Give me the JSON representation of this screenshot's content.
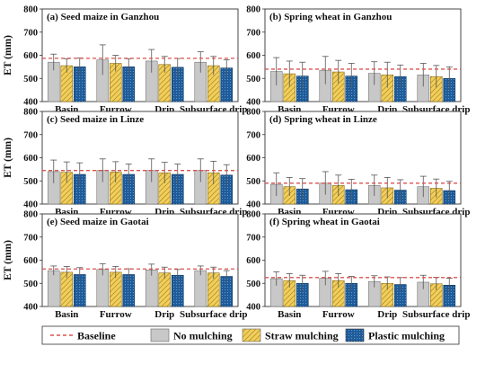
{
  "colors": {
    "no_mulching": "#c8c8c8",
    "straw_mulching": "#f2cf5a",
    "straw_hatch": "#9a7a20",
    "plastic_mulching": "#1f5c99",
    "plastic_hatch": "#6fa8dc",
    "baseline": "#d9534f",
    "error_bar": "#555555",
    "axis": "#333333"
  },
  "legend": {
    "baseline": "Baseline",
    "no_mulching": "No mulching",
    "straw_mulching": "Straw mulching",
    "plastic_mulching": "Plastic mulching"
  },
  "chart_data": [
    {
      "type": "bar",
      "title": "(a) Seed maize in Ganzhou",
      "ylabel": "ET (mm)",
      "ylim": [
        400,
        800
      ],
      "yticks": [
        400,
        500,
        600,
        700,
        800
      ],
      "categories": [
        "Basin",
        "Furrow",
        "Drip",
        "Subsurface drip"
      ],
      "baseline": 587,
      "series": [
        {
          "name": "No mulching",
          "values": [
            570,
            580,
            575,
            570
          ],
          "errors": [
            35,
            65,
            50,
            45
          ]
        },
        {
          "name": "Straw mulching",
          "values": [
            555,
            565,
            560,
            555
          ],
          "errors": [
            30,
            35,
            35,
            40
          ]
        },
        {
          "name": "Plastic mulching",
          "values": [
            550,
            550,
            548,
            545
          ],
          "errors": [
            38,
            35,
            38,
            35
          ]
        }
      ]
    },
    {
      "type": "bar",
      "title": "(b) Spring wheat in Ganzhou",
      "ylabel": "",
      "ylim": [
        400,
        800
      ],
      "yticks": [
        400,
        500,
        600,
        700,
        800
      ],
      "categories": [
        "Basin",
        "Furrow",
        "Drip",
        "Subsurface drip"
      ],
      "baseline": 540,
      "series": [
        {
          "name": "No mulching",
          "values": [
            530,
            535,
            522,
            515
          ],
          "errors": [
            60,
            60,
            50,
            50
          ]
        },
        {
          "name": "Straw mulching",
          "values": [
            520,
            528,
            515,
            508
          ],
          "errors": [
            55,
            50,
            55,
            48
          ]
        },
        {
          "name": "Plastic mulching",
          "values": [
            510,
            510,
            508,
            500
          ],
          "errors": [
            60,
            55,
            50,
            50
          ]
        }
      ]
    },
    {
      "type": "bar",
      "title": "(c) Seed maize in Linze",
      "ylabel": "ET (mm)",
      "ylim": [
        400,
        800
      ],
      "yticks": [
        400,
        500,
        600,
        700,
        800
      ],
      "categories": [
        "Basin",
        "Furrow",
        "Drip",
        "Subsurface drip"
      ],
      "baseline": 545,
      "series": [
        {
          "name": "No mulching",
          "values": [
            540,
            545,
            545,
            545
          ],
          "errors": [
            50,
            50,
            50,
            50
          ]
        },
        {
          "name": "Straw mulching",
          "values": [
            537,
            538,
            535,
            535
          ],
          "errors": [
            45,
            45,
            45,
            50
          ]
        },
        {
          "name": "Plastic mulching",
          "values": [
            528,
            528,
            528,
            525
          ],
          "errors": [
            50,
            45,
            45,
            45
          ]
        }
      ]
    },
    {
      "type": "bar",
      "title": "(d) Spring wheat in Linze",
      "ylabel": "",
      "ylim": [
        400,
        800
      ],
      "yticks": [
        400,
        500,
        600,
        700,
        800
      ],
      "categories": [
        "Basin",
        "Furrow",
        "Drip",
        "Subsurface drip"
      ],
      "baseline": 490,
      "series": [
        {
          "name": "No mulching",
          "values": [
            485,
            490,
            480,
            475
          ],
          "errors": [
            50,
            50,
            45,
            45
          ]
        },
        {
          "name": "Straw mulching",
          "values": [
            475,
            480,
            470,
            468
          ],
          "errors": [
            40,
            45,
            45,
            40
          ]
        },
        {
          "name": "Plastic mulching",
          "values": [
            465,
            462,
            460,
            458
          ],
          "errors": [
            45,
            45,
            45,
            40
          ]
        }
      ]
    },
    {
      "type": "bar",
      "title": "(e) Seed maize in Gaotai",
      "ylabel": "ET (mm)",
      "ylim": [
        400,
        800
      ],
      "yticks": [
        400,
        500,
        600,
        700,
        800
      ],
      "categories": [
        "Basin",
        "Furrow",
        "Drip",
        "Subsurface drip"
      ],
      "baseline": 562,
      "series": [
        {
          "name": "No mulching",
          "values": [
            555,
            560,
            558,
            555
          ],
          "errors": [
            20,
            25,
            25,
            20
          ]
        },
        {
          "name": "Straw mulching",
          "values": [
            548,
            548,
            545,
            545
          ],
          "errors": [
            25,
            25,
            25,
            25
          ]
        },
        {
          "name": "Plastic mulching",
          "values": [
            538,
            538,
            535,
            530
          ],
          "errors": [
            30,
            25,
            25,
            25
          ]
        }
      ]
    },
    {
      "type": "bar",
      "title": "(f) Spring wheat in Gaotai",
      "ylabel": "",
      "ylim": [
        400,
        800
      ],
      "yticks": [
        400,
        500,
        600,
        700,
        800
      ],
      "categories": [
        "Basin",
        "Furrow",
        "Drip",
        "Subsurface drip"
      ],
      "baseline": 525,
      "series": [
        {
          "name": "No mulching",
          "values": [
            520,
            522,
            508,
            505
          ],
          "errors": [
            30,
            30,
            25,
            30
          ]
        },
        {
          "name": "Straw mulching",
          "values": [
            512,
            512,
            500,
            498
          ],
          "errors": [
            30,
            30,
            28,
            28
          ]
        },
        {
          "name": "Plastic mulching",
          "values": [
            500,
            500,
            495,
            492
          ],
          "errors": [
            35,
            30,
            30,
            30
          ]
        }
      ]
    }
  ]
}
